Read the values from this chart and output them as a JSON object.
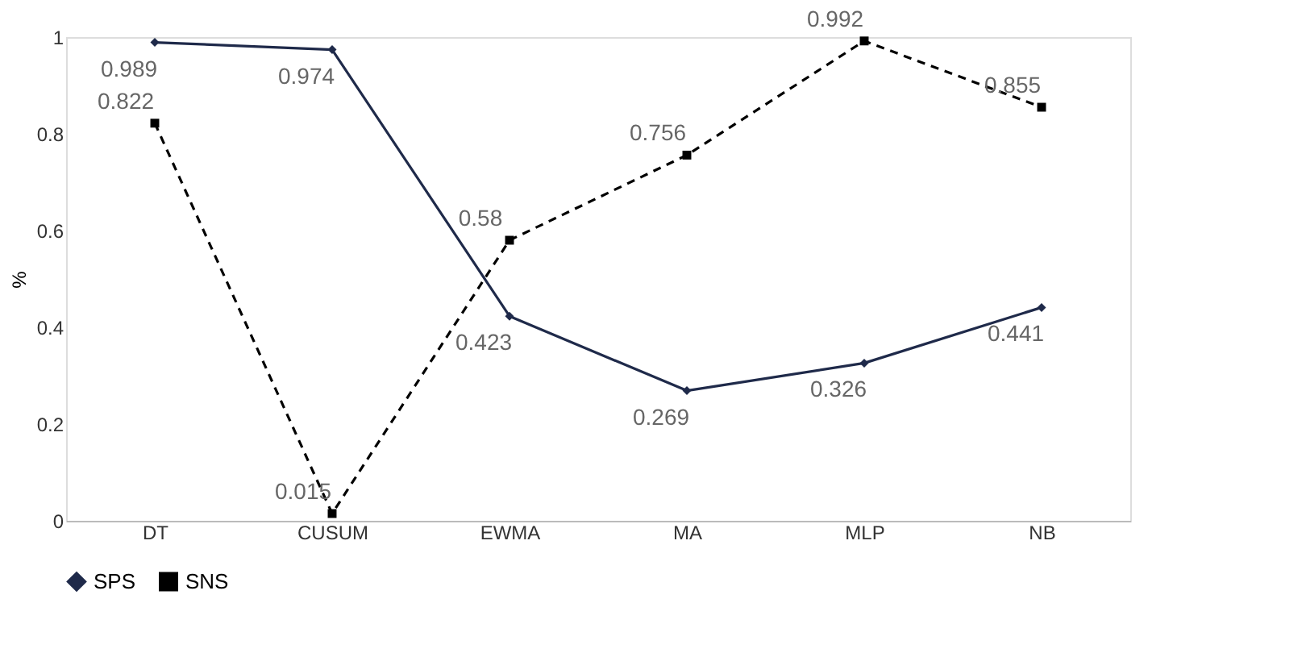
{
  "chart_data": {
    "type": "line",
    "ylabel": "%",
    "categories": [
      "DT",
      "CUSUM",
      "EWMA",
      "MA",
      "MLP",
      "NB"
    ],
    "series": [
      {
        "name": "SPS",
        "color": "#1f2a4a",
        "marker": "diamond",
        "line_style": "solid",
        "values": [
          0.989,
          0.974,
          0.423,
          0.269,
          0.326,
          0.441
        ]
      },
      {
        "name": "SNS",
        "color": "#000000",
        "marker": "square",
        "line_style": "dashed",
        "values": [
          0.822,
          0.015,
          0.58,
          0.756,
          0.992,
          0.855
        ]
      }
    ],
    "ylim": [
      0,
      1
    ],
    "yticks": [
      0,
      0.2,
      0.4,
      0.6,
      0.8,
      1
    ],
    "grid": false,
    "legend": "bottom",
    "data_labels": true
  }
}
